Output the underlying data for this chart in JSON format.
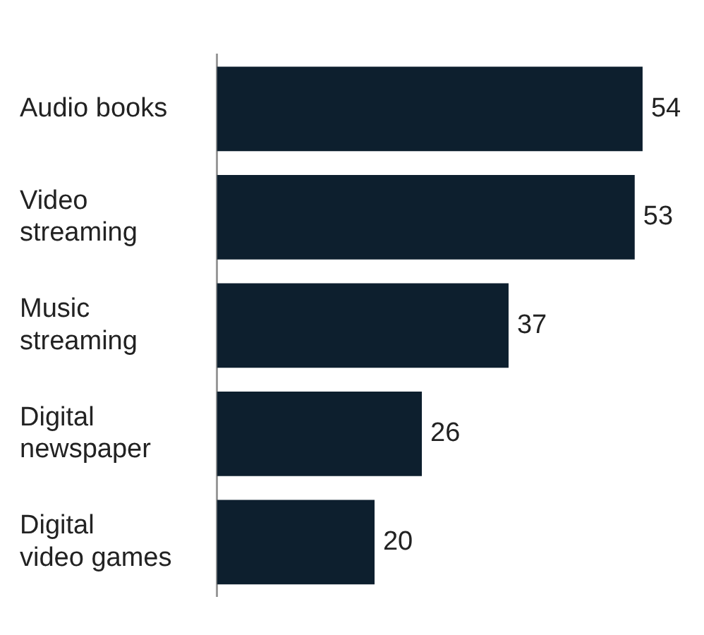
{
  "chart_data": {
    "type": "bar",
    "orientation": "horizontal",
    "categories": [
      "Audio books",
      "Video streaming",
      "Music streaming",
      "Digital newspaper",
      "Digital video games"
    ],
    "values": [
      54,
      53,
      37,
      26,
      20
    ],
    "color": "#0d1f2e",
    "data_labels": true,
    "grid": false,
    "legend": false,
    "tick_labels": "y"
  }
}
